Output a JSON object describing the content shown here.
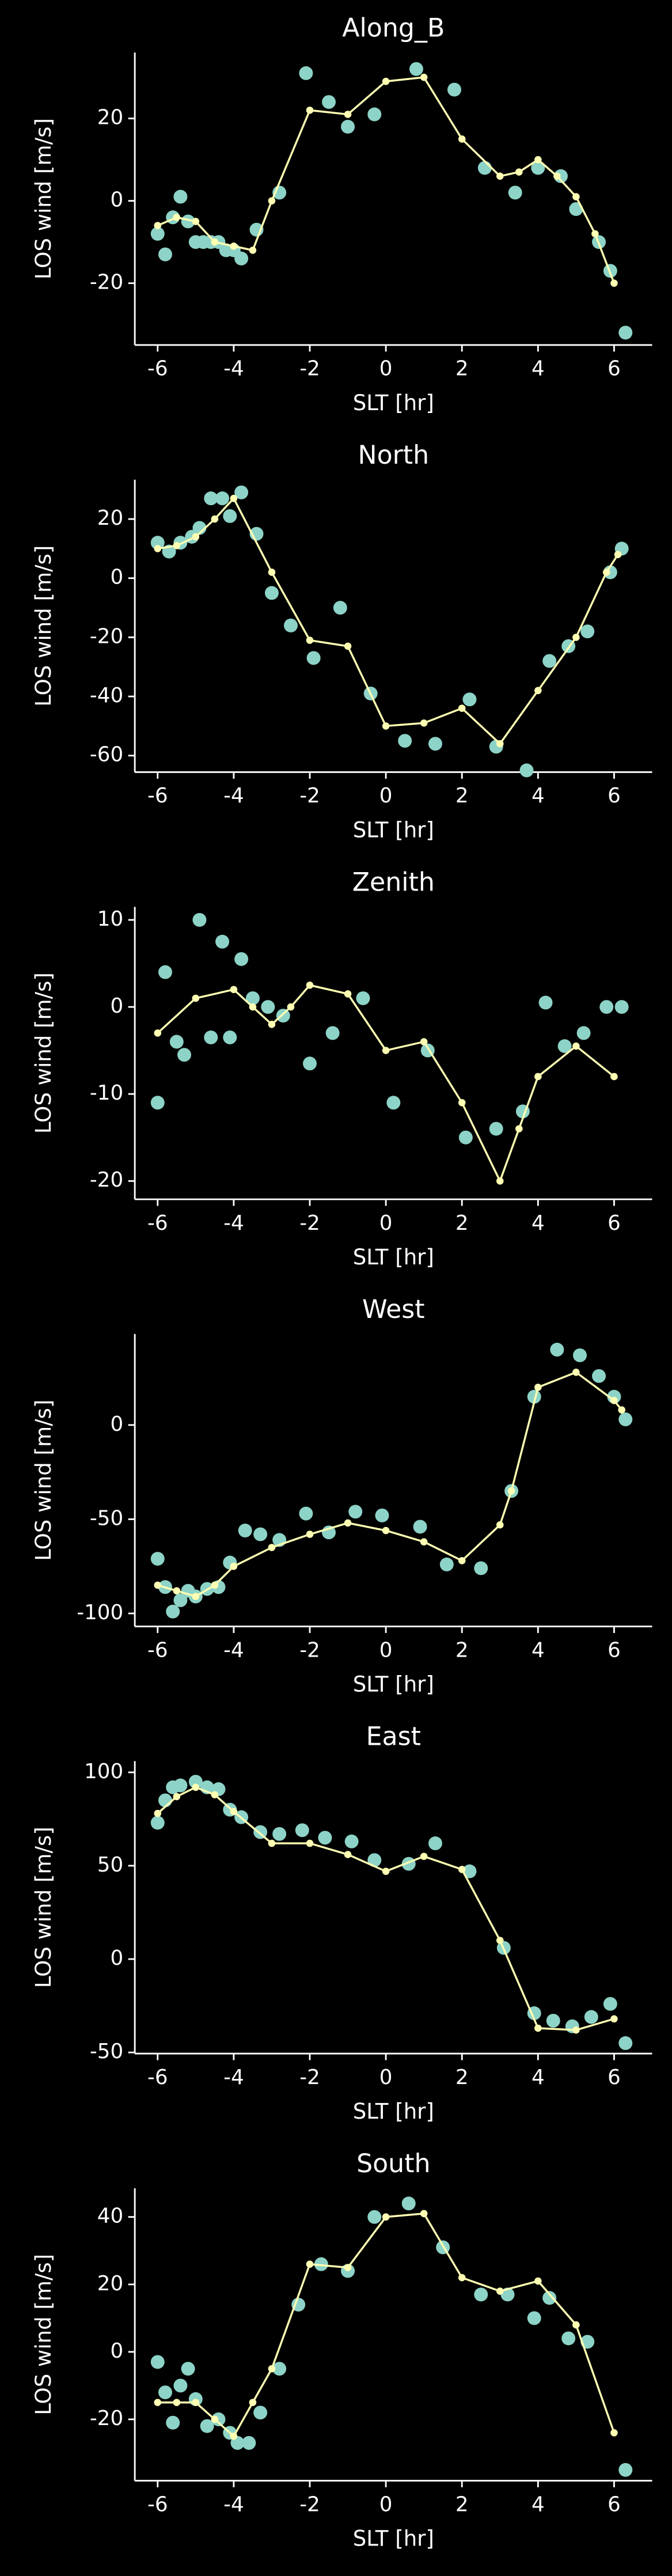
{
  "chart_data": [
    {
      "type": "scatter",
      "title": "Along_B",
      "xlabel": "SLT [hr]",
      "ylabel": "LOS wind [m/s]",
      "xlim": [
        -6.6,
        7.0
      ],
      "xticks": [
        -6,
        -4,
        -2,
        0,
        2,
        4,
        6
      ],
      "ylim": [
        -35,
        36
      ],
      "yticks": [
        -20,
        0,
        20
      ],
      "series": [
        {
          "mode": "markers",
          "color": "#8dd3c7",
          "x": [
            -6,
            -5.8,
            -5.6,
            -5.4,
            -5.2,
            -5,
            -4.8,
            -4.6,
            -4.4,
            -4.2,
            -4,
            -3.8,
            -3.4,
            -2.8,
            -2.1,
            -1.5,
            -1,
            -0.3,
            0.8,
            1.8,
            2.6,
            3.4,
            4,
            4.6,
            5,
            5.6,
            5.9,
            6.3
          ],
          "values": [
            -8,
            -13,
            -4,
            1,
            -5,
            -10,
            -10,
            -10,
            -10,
            -12,
            -12,
            -14,
            -7,
            2,
            31,
            24,
            18,
            21,
            32,
            27,
            8,
            2,
            8,
            6,
            -2,
            -10,
            -17,
            -32
          ]
        },
        {
          "mode": "lines+markers",
          "color": "#ffffb3",
          "x": [
            -6,
            -5.5,
            -5,
            -4.5,
            -4,
            -3.5,
            -3,
            -2,
            -1,
            0,
            1,
            2,
            3,
            3.5,
            4,
            4.5,
            5,
            5.5,
            6
          ],
          "values": [
            -6,
            -4,
            -5,
            -10,
            -11,
            -12,
            0,
            22,
            21,
            29,
            30,
            15,
            6,
            7,
            10,
            6,
            1,
            -8,
            -20
          ]
        }
      ]
    },
    {
      "type": "scatter",
      "title": "North",
      "xlabel": "SLT [hr]",
      "ylabel": "LOS wind [m/s]",
      "xlim": [
        -6.6,
        7.0
      ],
      "xticks": [
        -6,
        -4,
        -2,
        0,
        2,
        4,
        6
      ],
      "ylim": [
        -65.6,
        33.3
      ],
      "yticks": [
        -60,
        -40,
        -20,
        0,
        20
      ],
      "series": [
        {
          "mode": "markers",
          "color": "#8dd3c7",
          "x": [
            -6,
            -5.7,
            -5.4,
            -5.1,
            -4.9,
            -4.6,
            -4.3,
            -4.1,
            -3.8,
            -3.4,
            -3,
            -2.5,
            -1.9,
            -1.2,
            -0.4,
            0.5,
            1.3,
            2.2,
            2.9,
            3.7,
            4.3,
            4.8,
            5.3,
            5.9,
            6.2
          ],
          "values": [
            12,
            9,
            12,
            14,
            17,
            27,
            27,
            21,
            29,
            15,
            -5,
            -16,
            -27,
            -10,
            -39,
            -55,
            -56,
            -41,
            -57,
            -65,
            -28,
            -23,
            -18,
            2,
            10
          ]
        },
        {
          "mode": "lines+markers",
          "color": "#ffffb3",
          "x": [
            -6,
            -5.5,
            -5,
            -4.5,
            -4,
            -3,
            -2,
            -1,
            0,
            1,
            2,
            3,
            4,
            5,
            5.8,
            6.1
          ],
          "values": [
            10,
            11,
            14,
            20,
            27,
            2,
            -21,
            -23,
            -50,
            -49,
            -44,
            -56,
            -38,
            -20,
            2,
            8
          ]
        }
      ]
    },
    {
      "type": "scatter",
      "title": "Zenith",
      "xlabel": "SLT [hr]",
      "ylabel": "LOS wind [m/s]",
      "xlim": [
        -6.6,
        7.0
      ],
      "xticks": [
        -6,
        -4,
        -2,
        0,
        2,
        4,
        6
      ],
      "ylim": [
        -22.1,
        11.5
      ],
      "yticks": [
        -20,
        -10,
        0,
        10
      ],
      "series": [
        {
          "mode": "markers",
          "color": "#8dd3c7",
          "x": [
            -6,
            -5.8,
            -5.5,
            -5.3,
            -4.9,
            -4.6,
            -4.3,
            -4.1,
            -3.8,
            -3.5,
            -3.1,
            -2.7,
            -2,
            -1.4,
            -0.6,
            0.2,
            1.1,
            2.1,
            2.9,
            3.6,
            4.2,
            4.7,
            5.2,
            5.8,
            6.2
          ],
          "values": [
            -11,
            4,
            -4,
            -5.5,
            10,
            -3.5,
            7.5,
            -3.5,
            5.5,
            1,
            0,
            -1,
            -6.5,
            -3,
            1,
            -11,
            -5,
            -15,
            -14,
            -12,
            0.5,
            -4.5,
            -3,
            0,
            0
          ]
        },
        {
          "mode": "lines+markers",
          "color": "#ffffb3",
          "x": [
            -6,
            -5,
            -4,
            -3.5,
            -3,
            -2.5,
            -2,
            -1,
            0,
            1,
            2,
            3,
            3.5,
            4,
            5,
            6
          ],
          "values": [
            -3,
            1,
            2,
            0,
            -2,
            0,
            2.5,
            1.5,
            -5,
            -4,
            -11,
            -20,
            -14,
            -8,
            -4.5,
            -8
          ]
        }
      ]
    },
    {
      "type": "scatter",
      "title": "West",
      "xlabel": "SLT [hr]",
      "ylabel": "LOS wind [m/s]",
      "xlim": [
        -6.6,
        7.0
      ],
      "xticks": [
        -6,
        -4,
        -2,
        0,
        2,
        4,
        6
      ],
      "ylim": [
        -106.9,
        48.3
      ],
      "yticks": [
        -100,
        -50,
        0
      ],
      "series": [
        {
          "mode": "markers",
          "color": "#8dd3c7",
          "x": [
            -6,
            -5.8,
            -5.6,
            -5.4,
            -5.2,
            -5,
            -4.7,
            -4.4,
            -4.1,
            -3.7,
            -3.3,
            -2.8,
            -2.1,
            -1.5,
            -0.8,
            -0.1,
            0.9,
            1.6,
            2.5,
            3.3,
            3.9,
            4.5,
            5.1,
            5.6,
            6,
            6.3
          ],
          "values": [
            -71,
            -86,
            -99,
            -93,
            -88,
            -91,
            -87,
            -86,
            -73,
            -56,
            -58,
            -61,
            -47,
            -57,
            -46,
            -48,
            -54,
            -74,
            -76,
            -35,
            15,
            40,
            37,
            26,
            15,
            3
          ]
        },
        {
          "mode": "lines+markers",
          "color": "#ffffb3",
          "x": [
            -6,
            -5.5,
            -5,
            -4.5,
            -4,
            -3,
            -2,
            -1,
            0,
            1,
            2,
            3,
            3.3,
            4,
            5,
            6,
            6.2
          ],
          "values": [
            -85,
            -88,
            -91,
            -85,
            -75,
            -65,
            -58,
            -52,
            -56,
            -62,
            -72,
            -53,
            -35,
            20,
            28,
            13,
            8
          ]
        }
      ]
    },
    {
      "type": "scatter",
      "title": "East",
      "xlabel": "SLT [hr]",
      "ylabel": "LOS wind [m/s]",
      "xlim": [
        -6.6,
        7.0
      ],
      "xticks": [
        -6,
        -4,
        -2,
        0,
        2,
        4,
        6
      ],
      "ylim": [
        -50.6,
        106
      ],
      "yticks": [
        -50,
        0,
        50,
        100
      ],
      "series": [
        {
          "mode": "markers",
          "color": "#8dd3c7",
          "x": [
            -6,
            -5.8,
            -5.6,
            -5.4,
            -5,
            -4.7,
            -4.4,
            -4.1,
            -3.8,
            -3.3,
            -2.8,
            -2.2,
            -1.6,
            -0.9,
            -0.3,
            0.6,
            1.3,
            2.2,
            3.1,
            3.9,
            4.4,
            4.9,
            5.4,
            5.9,
            6.3
          ],
          "values": [
            73,
            85,
            92,
            93,
            95,
            92,
            91,
            80,
            76,
            68,
            67,
            69,
            65,
            63,
            53,
            51,
            62,
            47,
            6,
            -29,
            -33,
            -36,
            -31,
            -24,
            -45
          ]
        },
        {
          "mode": "lines+markers",
          "color": "#ffffb3",
          "x": [
            -6,
            -5.5,
            -5,
            -4.5,
            -4,
            -3,
            -2,
            -1,
            0,
            1,
            2,
            3,
            4,
            5,
            6
          ],
          "values": [
            78,
            87,
            92,
            88,
            79,
            62,
            62,
            56,
            47,
            55,
            48,
            10,
            -37,
            -38,
            -32
          ]
        }
      ]
    },
    {
      "type": "scatter",
      "title": "South",
      "xlabel": "SLT [hr]",
      "ylabel": "LOS wind [m/s]",
      "xlim": [
        -6.6,
        7.0
      ],
      "xticks": [
        -6,
        -4,
        -2,
        0,
        2,
        4,
        6
      ],
      "ylim": [
        -38.2,
        48.5
      ],
      "yticks": [
        -20,
        0,
        20,
        40
      ],
      "series": [
        {
          "mode": "markers",
          "color": "#8dd3c7",
          "x": [
            -6,
            -5.8,
            -5.6,
            -5.4,
            -5.2,
            -5,
            -4.7,
            -4.4,
            -4.1,
            -3.9,
            -3.6,
            -3.3,
            -2.8,
            -2.3,
            -1.7,
            -1,
            -0.3,
            0.6,
            1.5,
            2.5,
            3.2,
            3.9,
            4.3,
            4.8,
            5.3,
            6.3
          ],
          "values": [
            -3,
            -12,
            -21,
            -10,
            -5,
            -14,
            -22,
            -20,
            -24,
            -27,
            -27,
            -18,
            -5,
            14,
            26,
            24,
            40,
            44,
            31,
            17,
            17,
            10,
            16,
            4,
            3,
            -35
          ]
        },
        {
          "mode": "lines+markers",
          "color": "#ffffb3",
          "x": [
            -6,
            -5.5,
            -5,
            -4.5,
            -4,
            -3.5,
            -3,
            -2,
            -1,
            0,
            1,
            2,
            3,
            4,
            5,
            6
          ],
          "values": [
            -15,
            -15,
            -15,
            -20,
            -25,
            -15,
            -5,
            26,
            25,
            40,
            41,
            22,
            18,
            21,
            8,
            -24
          ]
        }
      ]
    }
  ]
}
